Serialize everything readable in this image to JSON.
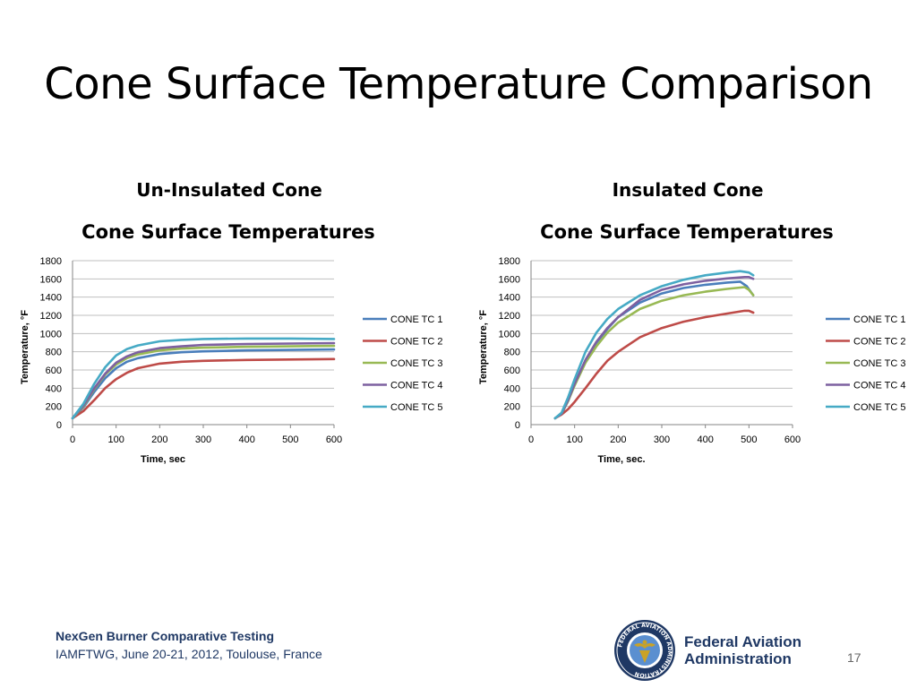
{
  "slide": {
    "title": "Cone Surface Temperature Comparison",
    "left_heading": "Un-Insulated Cone",
    "right_heading": "Insulated Cone"
  },
  "footer": {
    "title": "NexGen Burner Comparative Testing",
    "subtitle": "IAMFTWG, June 20-21, 2012, Toulouse, France",
    "page_number": "17",
    "agency_line1": "Federal Aviation",
    "agency_line2": "Administration",
    "logo_text": "FEDERAL AVIATION ADMINISTRATION"
  },
  "colors": {
    "tc1": "#4a7ebb",
    "tc2": "#be4b48",
    "tc3": "#98b954",
    "tc4": "#7d60a0",
    "tc5": "#46aac5",
    "grid": "#bfbfbf",
    "footer_text": "#1f3864"
  },
  "chart_data": [
    {
      "type": "line",
      "title": "Cone Surface Temperatures",
      "xlabel": "Time, sec",
      "ylabel": "Temperature, °F",
      "xlim": [
        0,
        600
      ],
      "ylim": [
        0,
        1800
      ],
      "xticks": [
        0,
        100,
        200,
        300,
        400,
        500,
        600
      ],
      "yticks": [
        0,
        200,
        400,
        600,
        800,
        1000,
        1200,
        1400,
        1600,
        1800
      ],
      "grid": "horizontal",
      "legend": "right",
      "series": [
        {
          "name": "CONE TC 1",
          "color": "#4a7ebb",
          "x": [
            0,
            25,
            50,
            75,
            100,
            125,
            150,
            200,
            250,
            300,
            400,
            500,
            600
          ],
          "y": [
            70,
            190,
            360,
            510,
            620,
            690,
            730,
            775,
            795,
            805,
            815,
            820,
            825
          ]
        },
        {
          "name": "CONE TC 2",
          "color": "#be4b48",
          "x": [
            0,
            25,
            50,
            75,
            100,
            125,
            150,
            200,
            250,
            300,
            400,
            500,
            600
          ],
          "y": [
            70,
            150,
            270,
            400,
            500,
            570,
            620,
            670,
            690,
            700,
            710,
            715,
            720
          ]
        },
        {
          "name": "CONE TC 3",
          "color": "#98b954",
          "x": [
            0,
            25,
            50,
            75,
            100,
            125,
            150,
            200,
            250,
            300,
            400,
            500,
            600
          ],
          "y": [
            70,
            200,
            390,
            550,
            660,
            730,
            770,
            815,
            835,
            845,
            855,
            860,
            865
          ]
        },
        {
          "name": "CONE TC 4",
          "color": "#7d60a0",
          "x": [
            0,
            25,
            50,
            75,
            100,
            125,
            150,
            200,
            250,
            300,
            400,
            500,
            600
          ],
          "y": [
            70,
            210,
            400,
            560,
            680,
            750,
            795,
            840,
            860,
            875,
            885,
            890,
            895
          ]
        },
        {
          "name": "CONE TC 5",
          "color": "#46aac5",
          "x": [
            0,
            25,
            50,
            75,
            100,
            125,
            150,
            200,
            250,
            300,
            400,
            500,
            600
          ],
          "y": [
            70,
            230,
            450,
            630,
            760,
            830,
            870,
            915,
            930,
            940,
            945,
            945,
            940
          ]
        }
      ]
    },
    {
      "type": "line",
      "title": "Cone Surface Temperatures",
      "xlabel": "Time, sec.",
      "ylabel": "Temperature, °F",
      "xlim": [
        0,
        600
      ],
      "ylim": [
        0,
        1800
      ],
      "xticks": [
        0,
        100,
        200,
        300,
        400,
        500,
        600
      ],
      "yticks": [
        0,
        200,
        400,
        600,
        800,
        1000,
        1200,
        1400,
        1600,
        1800
      ],
      "grid": "horizontal",
      "legend": "right",
      "series": [
        {
          "name": "CONE TC 1",
          "color": "#4a7ebb",
          "x": [
            55,
            70,
            85,
            100,
            125,
            150,
            175,
            200,
            250,
            300,
            350,
            400,
            450,
            480,
            495,
            510
          ],
          "y": [
            70,
            120,
            260,
            440,
            700,
            900,
            1050,
            1180,
            1340,
            1440,
            1500,
            1535,
            1560,
            1570,
            1520,
            1420
          ]
        },
        {
          "name": "CONE TC 2",
          "color": "#be4b48",
          "x": [
            55,
            70,
            85,
            100,
            125,
            150,
            175,
            200,
            250,
            300,
            350,
            400,
            450,
            490,
            500,
            510
          ],
          "y": [
            70,
            110,
            170,
            250,
            400,
            560,
            700,
            800,
            960,
            1060,
            1130,
            1180,
            1220,
            1250,
            1250,
            1230
          ]
        },
        {
          "name": "CONE TC 3",
          "color": "#98b954",
          "x": [
            55,
            70,
            85,
            100,
            125,
            150,
            175,
            200,
            250,
            300,
            350,
            400,
            450,
            490,
            500,
            510
          ],
          "y": [
            70,
            120,
            260,
            430,
            680,
            860,
            1010,
            1120,
            1270,
            1360,
            1420,
            1460,
            1490,
            1510,
            1480,
            1420
          ]
        },
        {
          "name": "CONE TC 4",
          "color": "#7d60a0",
          "x": [
            55,
            70,
            85,
            100,
            125,
            150,
            175,
            200,
            250,
            300,
            350,
            400,
            450,
            490,
            500,
            510
          ],
          "y": [
            70,
            120,
            270,
            450,
            710,
            910,
            1060,
            1180,
            1370,
            1480,
            1540,
            1580,
            1605,
            1620,
            1620,
            1600
          ]
        },
        {
          "name": "CONE TC 5",
          "color": "#46aac5",
          "x": [
            55,
            70,
            85,
            100,
            125,
            150,
            175,
            200,
            250,
            300,
            350,
            400,
            450,
            480,
            500,
            510
          ],
          "y": [
            70,
            130,
            300,
            500,
            800,
            1010,
            1160,
            1270,
            1420,
            1520,
            1590,
            1640,
            1670,
            1685,
            1670,
            1640
          ]
        }
      ]
    }
  ]
}
